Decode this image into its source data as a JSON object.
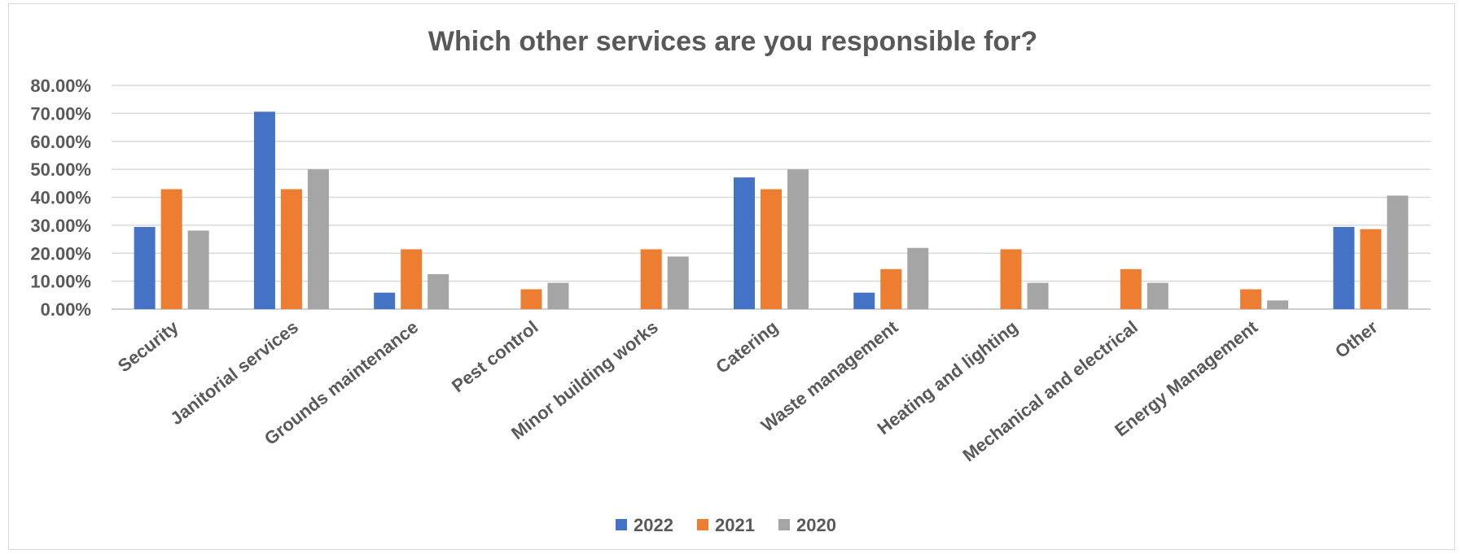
{
  "chart_data": {
    "type": "bar",
    "title": "Which other services are you responsible for?",
    "categories": [
      "Security",
      "Janitorial services",
      "Grounds maintenance",
      "Pest control",
      "Minor building works",
      "Catering",
      "Waste management",
      "Heating and lighting",
      "Mechanical and electrical",
      "Energy Management",
      "Other"
    ],
    "series": [
      {
        "name": "2022",
        "color": "#4472c4",
        "values": [
          29.4,
          70.6,
          5.9,
          0,
          0,
          47.1,
          5.9,
          0,
          0,
          0,
          29.4
        ]
      },
      {
        "name": "2021",
        "color": "#ed7d31",
        "values": [
          42.9,
          42.9,
          21.4,
          7.1,
          21.4,
          42.9,
          14.3,
          21.4,
          14.3,
          7.1,
          28.6
        ]
      },
      {
        "name": "2020",
        "color": "#a5a5a5",
        "values": [
          28.1,
          50.0,
          12.5,
          9.4,
          18.8,
          50.0,
          21.9,
          9.4,
          9.4,
          3.1,
          40.6
        ]
      }
    ],
    "yticks": [
      "0.00%",
      "10.00%",
      "20.00%",
      "30.00%",
      "40.00%",
      "50.00%",
      "60.00%",
      "70.00%",
      "80.00%"
    ],
    "ylim": [
      0,
      80
    ],
    "grid": true,
    "legend_position": "bottom"
  }
}
